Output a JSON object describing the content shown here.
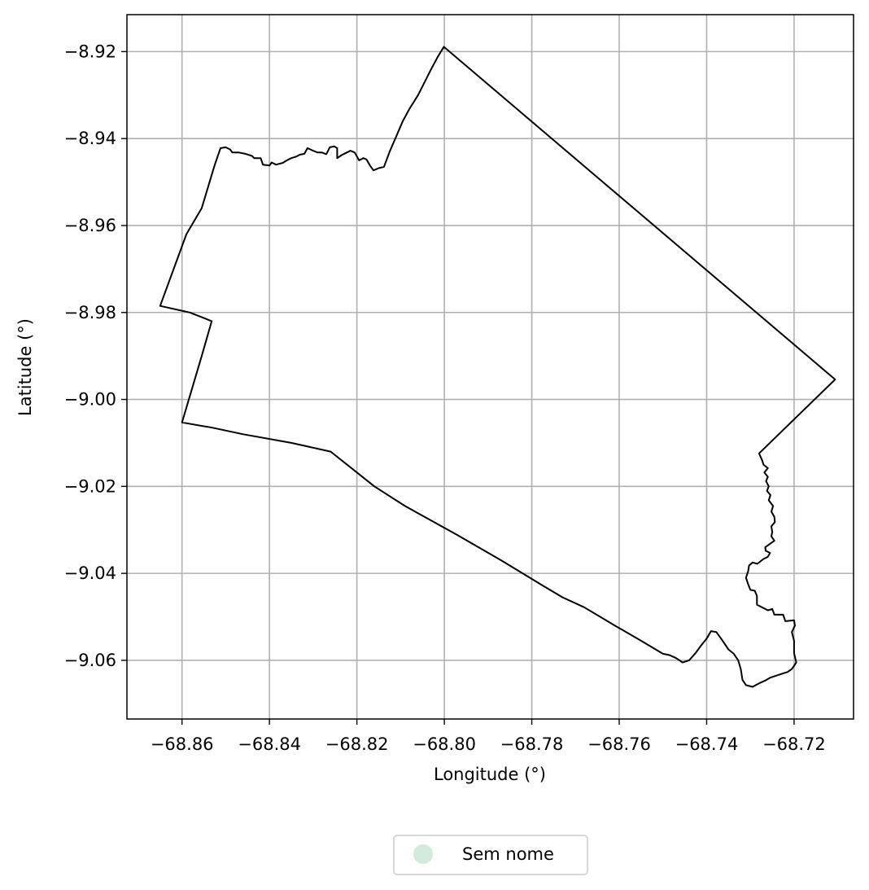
{
  "chart_data": {
    "type": "map",
    "xlabel": "Longitude (°)",
    "ylabel": "Latitude (°)",
    "xlim": [
      -68.8726,
      -68.7064
    ],
    "ylim": [
      -9.0735,
      -8.9115
    ],
    "grid": true,
    "x_ticks": [
      {
        "value": -68.86,
        "label": "−68.86"
      },
      {
        "value": -68.84,
        "label": "−68.84"
      },
      {
        "value": -68.82,
        "label": "−68.82"
      },
      {
        "value": -68.8,
        "label": "−68.80"
      },
      {
        "value": -68.78,
        "label": "−68.78"
      },
      {
        "value": -68.76,
        "label": "−68.76"
      },
      {
        "value": -68.74,
        "label": "−68.74"
      },
      {
        "value": -68.72,
        "label": "−68.72"
      }
    ],
    "y_ticks": [
      {
        "value": -8.92,
        "label": "−8.92"
      },
      {
        "value": -8.94,
        "label": "−8.94"
      },
      {
        "value": -8.96,
        "label": "−8.96"
      },
      {
        "value": -8.98,
        "label": "−8.98"
      },
      {
        "value": -9.0,
        "label": "−9.00"
      },
      {
        "value": -9.02,
        "label": "−9.02"
      },
      {
        "value": -9.04,
        "label": "−9.04"
      },
      {
        "value": -9.06,
        "label": "−9.06"
      }
    ],
    "boundary": {
      "stroke": "#000000",
      "points": [
        [
          -68.8001,
          -8.9189
        ],
        [
          -68.7106,
          -8.9954
        ],
        [
          -68.728,
          -9.0124
        ],
        [
          -68.7273,
          -9.014
        ],
        [
          -68.727,
          -9.015
        ],
        [
          -68.726,
          -9.0158
        ],
        [
          -68.7268,
          -9.0168
        ],
        [
          -68.726,
          -9.0178
        ],
        [
          -68.7264,
          -9.0188
        ],
        [
          -68.7258,
          -9.02
        ],
        [
          -68.7262,
          -9.021
        ],
        [
          -68.7254,
          -9.022
        ],
        [
          -68.7258,
          -9.0232
        ],
        [
          -68.7248,
          -9.0245
        ],
        [
          -68.7252,
          -9.0258
        ],
        [
          -68.7245,
          -9.027
        ],
        [
          -68.7244,
          -9.0282
        ],
        [
          -68.7252,
          -9.0292
        ],
        [
          -68.725,
          -9.0305
        ],
        [
          -68.7252,
          -9.0315
        ],
        [
          -68.7245,
          -9.0325
        ],
        [
          -68.7255,
          -9.0332
        ],
        [
          -68.7266,
          -9.034
        ],
        [
          -68.7265,
          -9.0348
        ],
        [
          -68.7255,
          -9.0353
        ],
        [
          -68.726,
          -9.0362
        ],
        [
          -68.727,
          -9.0367
        ],
        [
          -68.7284,
          -9.0378
        ],
        [
          -68.7295,
          -9.0375
        ],
        [
          -68.7303,
          -9.0382
        ],
        [
          -68.7305,
          -9.0395
        ],
        [
          -68.731,
          -9.041
        ],
        [
          -68.7305,
          -9.0425
        ],
        [
          -68.73,
          -9.0438
        ],
        [
          -68.729,
          -9.044
        ],
        [
          -68.7285,
          -9.0452
        ],
        [
          -68.7285,
          -9.0472
        ],
        [
          -68.726,
          -9.0485
        ],
        [
          -68.725,
          -9.0482
        ],
        [
          -68.7245,
          -9.0495
        ],
        [
          -68.7225,
          -9.0495
        ],
        [
          -68.722,
          -9.051
        ],
        [
          -68.72,
          -9.0508
        ],
        [
          -68.7198,
          -9.052
        ],
        [
          -68.7205,
          -9.0535
        ],
        [
          -68.72,
          -9.0555
        ],
        [
          -68.72,
          -9.0583
        ],
        [
          -68.7195,
          -9.0605
        ],
        [
          -68.7205,
          -9.062
        ],
        [
          -68.7215,
          -9.0627
        ],
        [
          -68.7225,
          -9.063
        ],
        [
          -68.7255,
          -9.064
        ],
        [
          -68.7265,
          -9.0646
        ],
        [
          -68.728,
          -9.0653
        ],
        [
          -68.7295,
          -9.0661
        ],
        [
          -68.731,
          -9.0657
        ],
        [
          -68.7318,
          -9.0645
        ],
        [
          -68.7322,
          -9.062
        ],
        [
          -68.7328,
          -9.06
        ],
        [
          -68.7338,
          -9.0585
        ],
        [
          -68.735,
          -9.0575
        ],
        [
          -68.7365,
          -9.0553
        ],
        [
          -68.7378,
          -9.0535
        ],
        [
          -68.739,
          -9.0533
        ],
        [
          -68.74,
          -9.055
        ],
        [
          -68.7412,
          -9.0565
        ],
        [
          -68.7425,
          -9.0583
        ],
        [
          -68.744,
          -9.06
        ],
        [
          -68.7455,
          -9.0605
        ],
        [
          -68.747,
          -9.0595
        ],
        [
          -68.7485,
          -9.0588
        ],
        [
          -68.75,
          -9.0585
        ],
        [
          -68.755,
          -9.0555
        ],
        [
          -68.761,
          -9.052
        ],
        [
          -68.768,
          -9.0478
        ],
        [
          -68.773,
          -9.0455
        ],
        [
          -68.778,
          -9.0425
        ],
        [
          -68.787,
          -9.037
        ],
        [
          -68.797,
          -9.0312
        ],
        [
          -68.809,
          -9.0245
        ],
        [
          -68.816,
          -9.02
        ],
        [
          -68.826,
          -9.012
        ],
        [
          -68.835,
          -9.01
        ],
        [
          -68.846,
          -9.008
        ],
        [
          -68.853,
          -9.0065
        ],
        [
          -68.86,
          -9.0053
        ],
        [
          -68.8555,
          -8.99
        ],
        [
          -68.8532,
          -8.982
        ],
        [
          -68.8582,
          -8.98
        ],
        [
          -68.865,
          -8.9785
        ],
        [
          -68.859,
          -8.962
        ],
        [
          -68.8555,
          -8.956
        ],
        [
          -68.8525,
          -8.946
        ],
        [
          -68.8512,
          -8.9422
        ],
        [
          -68.85,
          -8.942
        ],
        [
          -68.849,
          -8.9425
        ],
        [
          -68.8485,
          -8.9432
        ],
        [
          -68.847,
          -8.9432
        ],
        [
          -68.8455,
          -8.9435
        ],
        [
          -68.844,
          -8.944
        ],
        [
          -68.8435,
          -8.9445
        ],
        [
          -68.842,
          -8.9445
        ],
        [
          -68.8415,
          -8.946
        ],
        [
          -68.84,
          -8.9462
        ],
        [
          -68.8395,
          -8.9455
        ],
        [
          -68.8385,
          -8.946
        ],
        [
          -68.837,
          -8.9456
        ],
        [
          -68.836,
          -8.945
        ],
        [
          -68.835,
          -8.9445
        ],
        [
          -68.834,
          -8.9442
        ],
        [
          -68.833,
          -8.9437
        ],
        [
          -68.832,
          -8.9435
        ],
        [
          -68.8313,
          -8.9422
        ],
        [
          -68.83,
          -8.9428
        ],
        [
          -68.829,
          -8.9432
        ],
        [
          -68.828,
          -8.9432
        ],
        [
          -68.827,
          -8.9436
        ],
        [
          -68.8262,
          -8.942
        ],
        [
          -68.8252,
          -8.9418
        ],
        [
          -68.8245,
          -8.9422
        ],
        [
          -68.8245,
          -8.9445
        ],
        [
          -68.8235,
          -8.9438
        ],
        [
          -68.8225,
          -8.9433
        ],
        [
          -68.8215,
          -8.9428
        ],
        [
          -68.8205,
          -8.9432
        ],
        [
          -68.8195,
          -8.945
        ],
        [
          -68.8185,
          -8.9445
        ],
        [
          -68.8178,
          -8.9448
        ],
        [
          -68.817,
          -8.9462
        ],
        [
          -68.8162,
          -8.9473
        ],
        [
          -68.815,
          -8.9468
        ],
        [
          -68.8138,
          -8.9465
        ],
        [
          -68.8125,
          -8.943
        ],
        [
          -68.811,
          -8.9395
        ],
        [
          -68.8095,
          -8.936
        ],
        [
          -68.808,
          -8.9332
        ],
        [
          -68.806,
          -8.93
        ],
        [
          -68.8045,
          -8.927
        ],
        [
          -68.803,
          -8.924
        ],
        [
          -68.8015,
          -8.9212
        ],
        [
          -68.8001,
          -8.9189
        ]
      ]
    },
    "legend": {
      "placement": "bottom-center",
      "entries": [
        {
          "label": "Sem nome",
          "color": "#d0ebdc"
        }
      ]
    },
    "colors": {
      "grid": "#b0b0b0",
      "frame": "#000000"
    }
  }
}
